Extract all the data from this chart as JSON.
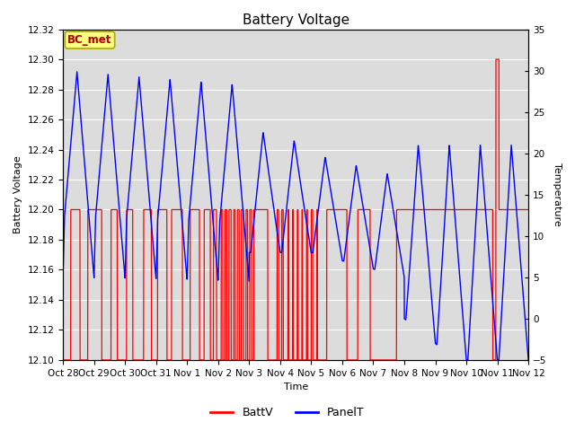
{
  "title": "Battery Voltage",
  "ylabel_left": "Battery Voltage",
  "ylabel_right": "Temperature",
  "xlabel": "Time",
  "ylim_left": [
    12.1,
    12.32
  ],
  "ylim_right": [
    -5,
    35
  ],
  "xlim": [
    0,
    15
  ],
  "x_tick_labels": [
    "Oct 28",
    "Oct 29",
    "Oct 30",
    "Oct 31",
    "Nov 1",
    "Nov 2",
    "Nov 3",
    "Nov 4",
    "Nov 5",
    "Nov 6",
    "Nov 7",
    "Nov 8",
    "Nov 9",
    "Nov 10",
    "Nov 11",
    "Nov 12"
  ],
  "x_tick_positions": [
    0,
    1,
    2,
    3,
    4,
    5,
    6,
    7,
    8,
    9,
    10,
    11,
    12,
    13,
    14,
    15
  ],
  "batt_color": "#FF0000",
  "panel_color": "#0000FF",
  "background_color": "#DCDCDC",
  "grid_color": "#FFFFFF",
  "bc_met_bg": "#FFFF80",
  "bc_met_border": "#AAAA00",
  "bc_met_text_color": "#AA0000",
  "title_fontsize": 11,
  "label_fontsize": 8,
  "tick_fontsize": 7.5,
  "legend_fontsize": 9,
  "right_tick_style": "dotted"
}
